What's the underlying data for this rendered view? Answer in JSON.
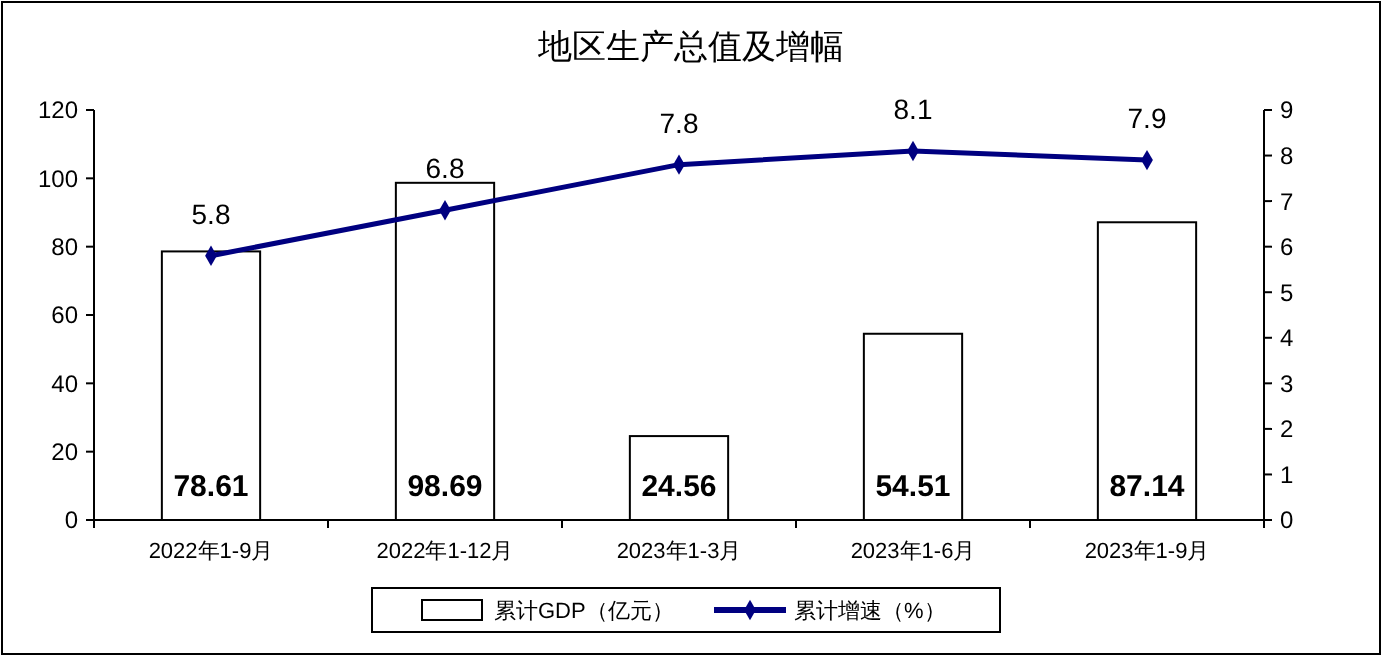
{
  "chart_data": {
    "type": "bar",
    "title": "地区生产总值及增幅",
    "categories": [
      "2022年1-9月",
      "2022年1-12月",
      "2023年1-3月",
      "2023年1-6月",
      "2023年1-9月"
    ],
    "series": [
      {
        "name": "累计GDP（亿元）",
        "color": "#ffffff",
        "values": [
          78.61,
          98.69,
          24.56,
          54.51,
          87.14
        ]
      },
      {
        "name": "累计增速（%）",
        "type": "line",
        "axis": "y2",
        "color": "#000080",
        "values": [
          5.8,
          6.8,
          7.8,
          8.1,
          7.9
        ]
      }
    ],
    "ylim": [
      0,
      120
    ],
    "yticks": [
      0,
      20,
      40,
      60,
      80,
      100,
      120
    ],
    "y2lim": [
      0,
      9
    ],
    "y2ticks": [
      0,
      1,
      2,
      3,
      4,
      5,
      6,
      7,
      8,
      9
    ],
    "data_labels": true,
    "legend": "bottom",
    "marker": "diamond",
    "grid": false
  }
}
